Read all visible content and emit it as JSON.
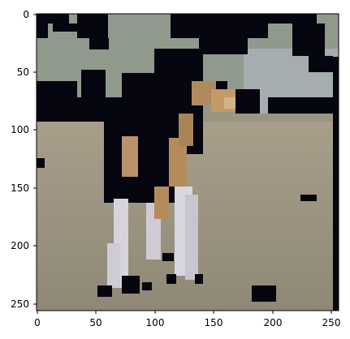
{
  "image_axes": {
    "x_ticks": [
      0,
      50,
      100,
      150,
      200,
      250
    ],
    "y_ticks": [
      0,
      50,
      100,
      150,
      200,
      250
    ],
    "x_range": [
      0,
      256
    ],
    "y_range": [
      0,
      256
    ],
    "y_inverted": true
  },
  "picture": {
    "subject": "foal",
    "palette": {
      "sky": "#9aa5a6",
      "foliage": "#7f8a7b",
      "dark_mass": "#050510",
      "ground": "#9d9480",
      "ground_dark": "#7c7664",
      "coat_brown": "#b18a5a",
      "legs_white": "#d8d6e0"
    }
  }
}
